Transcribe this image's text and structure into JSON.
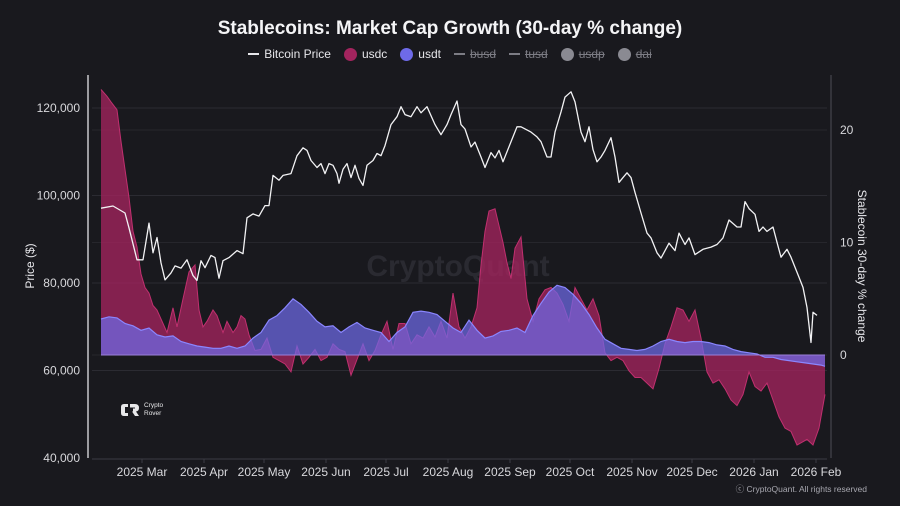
{
  "title": "Stablecoins: Market Cap Growth (30-day % change)",
  "legend": [
    {
      "label": "Bitcoin Price",
      "marker": "line",
      "color": "#e6e6ea",
      "active": true
    },
    {
      "label": "usdc",
      "marker": "dot",
      "color": "#a3245e",
      "active": true
    },
    {
      "label": "usdt",
      "marker": "dot",
      "color": "#6e6ae8",
      "active": true
    },
    {
      "label": "busd",
      "marker": "line",
      "color": "#7c7c84",
      "active": false
    },
    {
      "label": "tusd",
      "marker": "line",
      "color": "#7c7c84",
      "active": false
    },
    {
      "label": "usdp",
      "marker": "dot",
      "color": "#8a8a92",
      "active": false
    },
    {
      "label": "dai",
      "marker": "dot",
      "color": "#8a8a92",
      "active": false
    }
  ],
  "watermark": "CryptoQuant",
  "logo": {
    "line1": "Crypto",
    "line2": "Rover"
  },
  "footer": "ⓒ CryptoQuant. All rights reserved",
  "colors": {
    "background": "#19191e",
    "grid": "#2b2b32",
    "btc": "#f2f2f4",
    "usdc_fill": "#a3245e",
    "usdc_line": "#c0306f",
    "usdt_fill": "#6e6ae8",
    "usdt_line": "#8a86ff",
    "overlap": "#8c55c8"
  },
  "chart_data": {
    "type": "line+area",
    "title": "Stablecoins: Market Cap Growth (30-day % change)",
    "xlabel": "",
    "ylabel_left": "Price ($)",
    "ylabel_right": "Stablecoin 30-day % change",
    "ylim_left": [
      40000,
      126000
    ],
    "ylim_right": [
      -9.2,
      24.8
    ],
    "yticks_left": [
      {
        "v": 40000,
        "label": "40,000"
      },
      {
        "v": 60000,
        "label": "60,000"
      },
      {
        "v": 80000,
        "label": "80,000"
      },
      {
        "v": 100000,
        "label": "100,000"
      },
      {
        "v": 120000,
        "label": "120,000"
      }
    ],
    "yticks_right": [
      {
        "v": 0,
        "label": "0"
      },
      {
        "v": 10,
        "label": "10"
      },
      {
        "v": 20,
        "label": "20"
      }
    ],
    "x_start": "2025-02-18",
    "x_end": "2026-02-09",
    "xticks": [
      {
        "day": 11,
        "label": "2025 Mar"
      },
      {
        "day": 42,
        "label": "2025 Apr"
      },
      {
        "day": 72,
        "label": "2025 May"
      },
      {
        "day": 103,
        "label": "2025 Jun"
      },
      {
        "day": 133,
        "label": "2025 Jul"
      },
      {
        "day": 164,
        "label": "2025 Aug"
      },
      {
        "day": 195,
        "label": "2025 Sep"
      },
      {
        "day": 225,
        "label": "2025 Oct"
      },
      {
        "day": 256,
        "label": "2025 Nov"
      },
      {
        "day": 286,
        "label": "2025 Dec"
      },
      {
        "day": 317,
        "label": "2026 Jan"
      },
      {
        "day": 348,
        "label": "2026 Feb"
      }
    ],
    "legend_position": "top-center",
    "grid": true,
    "series": [
      {
        "name": "Bitcoin Price",
        "axis": "left",
        "kind": "line",
        "day": [
          0,
          6,
          12,
          14,
          18,
          21,
          24,
          26,
          28,
          30,
          32,
          35,
          37,
          40,
          43,
          46,
          48,
          50,
          52,
          55,
          57,
          59,
          61,
          64,
          68,
          71,
          73,
          76,
          79,
          82,
          84,
          86,
          89,
          91,
          95,
          98,
          101,
          103,
          105,
          108,
          110,
          112,
          114,
          116,
          118,
          119,
          121,
          123,
          125,
          127,
          129,
          131,
          133,
          136,
          138,
          140,
          142,
          145,
          148,
          150,
          152,
          155,
          158,
          160,
          163,
          167,
          170,
          173,
          175,
          178,
          180,
          182,
          185,
          187,
          190,
          192,
          195,
          197,
          199,
          201,
          205,
          208,
          210,
          215,
          218,
          220,
          223,
          225,
          227,
          230,
          232,
          235,
          237,
          240,
          242,
          244,
          246,
          248,
          250,
          252,
          255,
          257,
          259,
          261,
          263,
          265,
          267,
          270,
          273,
          275,
          278,
          280,
          284,
          287,
          289,
          292,
          294,
          297,
          301,
          305,
          308,
          311,
          314,
          318,
          320,
          322,
          324,
          327,
          329,
          331,
          333,
          336,
          338,
          340,
          343,
          345,
          347,
          349,
          351,
          353,
          355,
          356,
          358,
          360,
          361,
          362
        ],
        "values": [
          97100,
          97600,
          96000,
          92600,
          85300,
          85300,
          93700,
          86900,
          90400,
          84600,
          80700,
          82300,
          83900,
          83400,
          85300,
          81700,
          80600,
          85100,
          83500,
          86300,
          85800,
          81100,
          85100,
          85800,
          87400,
          86700,
          94900,
          95800,
          95300,
          97700,
          97700,
          104600,
          103500,
          104600,
          105000,
          109100,
          110900,
          110300,
          108000,
          106400,
          107300,
          105000,
          107300,
          106900,
          105000,
          102800,
          106000,
          107300,
          104100,
          106900,
          103900,
          102300,
          106900,
          108000,
          109600,
          109100,
          111400,
          116200,
          118000,
          120300,
          118500,
          118000,
          120300,
          118900,
          120300,
          116200,
          113900,
          116200,
          118500,
          121600,
          116200,
          115200,
          111100,
          112200,
          108800,
          106400,
          109800,
          108600,
          110300,
          107700,
          112300,
          115700,
          115700,
          114500,
          113400,
          112300,
          108800,
          108800,
          114500,
          119100,
          122500,
          123700,
          121400,
          114500,
          112300,
          115700,
          110500,
          107700,
          108800,
          110300,
          113200,
          108800,
          103000,
          104100,
          105200,
          104100,
          100700,
          96000,
          91400,
          90300,
          86900,
          85700,
          89100,
          87400,
          91400,
          88800,
          90300,
          86500,
          87700,
          88200,
          88800,
          90300,
          94400,
          92800,
          92800,
          98600,
          97000,
          95700,
          91800,
          92800,
          91800,
          92800,
          89300,
          85900,
          87700,
          85900,
          83600,
          81300,
          79000,
          74400,
          66400,
          73300,
          72600
        ]
      },
      {
        "name": "usdc",
        "axis": "right",
        "kind": "area",
        "day": [
          0,
          3,
          5,
          8,
          10,
          12,
          14,
          16,
          18,
          20,
          22,
          24,
          26,
          28,
          30,
          33,
          36,
          38,
          41,
          44,
          47,
          49,
          51,
          53,
          56,
          58,
          61,
          63,
          66,
          68,
          70,
          72,
          74,
          77,
          80,
          83,
          86,
          89,
          92,
          95,
          98,
          101,
          104,
          107,
          110,
          113,
          116,
          119,
          122,
          125,
          128,
          131,
          134,
          137,
          140,
          143,
          146,
          149,
          152,
          155,
          158,
          161,
          164,
          167,
          170,
          173,
          176,
          179,
          182,
          185,
          188,
          190,
          192,
          194,
          197,
          199,
          201,
          203,
          205,
          207,
          210,
          213,
          216,
          219,
          222,
          225,
          228,
          231,
          234,
          237,
          240,
          243,
          246,
          249,
          252,
          255,
          258,
          261,
          264,
          267,
          270,
          273,
          276,
          279,
          282,
          285,
          288,
          291,
          294,
          297,
          300,
          303,
          306,
          309,
          312,
          315,
          318,
          321,
          324,
          327,
          330,
          333,
          336,
          339,
          342,
          345,
          348,
          350,
          353,
          356,
          359,
          362
        ],
        "values": [
          23.6,
          23.0,
          22.5,
          21.8,
          19.0,
          16.5,
          14.0,
          11.0,
          9.6,
          7.2,
          6.0,
          5.5,
          4.4,
          4.0,
          3.2,
          2.0,
          4.2,
          2.5,
          5.0,
          7.4,
          8.0,
          4.0,
          2.5,
          3.0,
          4.0,
          3.5,
          2.0,
          3.0,
          2.0,
          2.5,
          3.5,
          3.2,
          1.8,
          0.4,
          0.5,
          1.5,
          -0.2,
          -0.5,
          -0.8,
          -1.5,
          0.8,
          -0.8,
          -0.2,
          0.5,
          -0.5,
          -0.2,
          1.0,
          0.5,
          0.3,
          -1.8,
          -0.4,
          1.0,
          -0.5,
          0.4,
          1.8,
          3.0,
          0.5,
          2.8,
          2.8,
          1.0,
          1.8,
          1.5,
          2.5,
          1.6,
          3.0,
          1.5,
          5.5,
          2.5,
          1.5,
          2.5,
          4.2,
          8.0,
          11.0,
          12.8,
          13.0,
          11.5,
          10.0,
          8.2,
          6.8,
          9.5,
          10.5,
          5.0,
          3.0,
          5.0,
          5.8,
          6.0,
          5.5,
          4.5,
          3.0,
          6.0,
          5.0,
          4.0,
          5.0,
          3.5,
          0.2,
          -0.5,
          -0.2,
          -0.5,
          -1.4,
          -2.0,
          -2.0,
          -2.5,
          -3.0,
          -1.2,
          1.0,
          2.5,
          4.2,
          4.0,
          3.0,
          4.0,
          1.5,
          -1.5,
          -2.5,
          -2.2,
          -3.0,
          -4.0,
          -4.5,
          -3.5,
          -1.5,
          -2.8,
          -3.2,
          -2.5,
          -4.0,
          -5.5,
          -6.5,
          -6.8,
          -8.0,
          -7.8,
          -7.5,
          -8.0,
          -6.5,
          -3.5
        ]
      },
      {
        "name": "usdt",
        "axis": "right",
        "kind": "area",
        "day": [
          0,
          4,
          8,
          12,
          16,
          20,
          24,
          28,
          32,
          36,
          40,
          44,
          48,
          52,
          56,
          60,
          64,
          68,
          72,
          76,
          80,
          84,
          88,
          92,
          96,
          100,
          104,
          108,
          112,
          116,
          120,
          124,
          128,
          132,
          136,
          140,
          144,
          148,
          152,
          156,
          160,
          164,
          168,
          172,
          176,
          180,
          184,
          188,
          192,
          196,
          200,
          204,
          208,
          212,
          216,
          220,
          224,
          228,
          232,
          236,
          240,
          244,
          248,
          252,
          256,
          260,
          264,
          268,
          272,
          276,
          280,
          284,
          288,
          292,
          296,
          300,
          304,
          308,
          312,
          316,
          320,
          324,
          328,
          332,
          336,
          340,
          344,
          348,
          352,
          356,
          360,
          362
        ],
        "values": [
          3.2,
          3.4,
          3.3,
          2.8,
          2.6,
          2.2,
          2.4,
          1.8,
          1.6,
          1.7,
          1.2,
          1.0,
          0.8,
          0.7,
          0.6,
          0.6,
          0.8,
          0.6,
          0.8,
          1.5,
          2.0,
          3.1,
          3.5,
          4.2,
          5.0,
          4.5,
          3.8,
          3.0,
          2.5,
          2.6,
          2.0,
          2.5,
          2.9,
          2.4,
          2.2,
          2.0,
          1.2,
          2.0,
          2.5,
          3.8,
          3.9,
          3.8,
          3.6,
          3.0,
          2.4,
          2.0,
          3.1,
          2.2,
          1.5,
          1.7,
          2.1,
          2.2,
          2.4,
          2.0,
          3.5,
          4.6,
          5.6,
          6.2,
          6.0,
          5.4,
          4.6,
          3.6,
          2.4,
          1.4,
          1.0,
          0.6,
          0.5,
          0.4,
          0.5,
          0.8,
          1.2,
          1.4,
          1.2,
          1.1,
          1.2,
          1.2,
          1.1,
          0.9,
          0.8,
          0.5,
          0.3,
          0.2,
          0.1,
          -0.2,
          -0.2,
          -0.4,
          -0.5,
          -0.6,
          -0.7,
          -0.8,
          -0.9,
          -1.0
        ]
      }
    ]
  }
}
